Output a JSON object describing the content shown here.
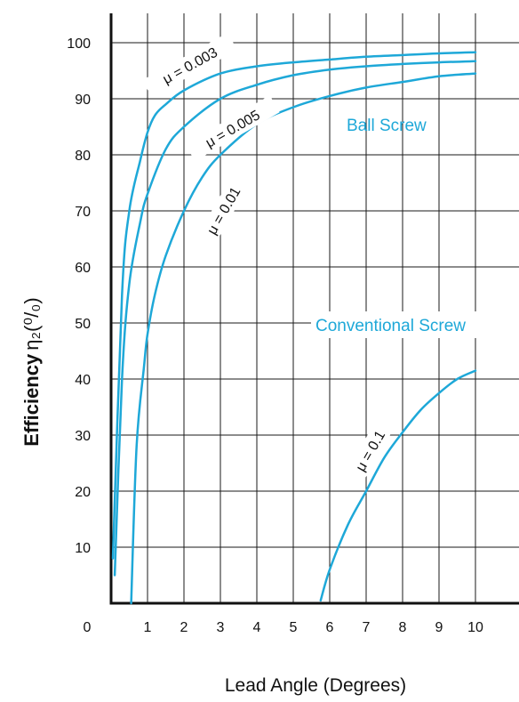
{
  "chart_data": {
    "type": "line",
    "xlabel": "Lead Angle (Degrees)",
    "ylabel": "Efficiency",
    "ylabel_symbol": "η₂(⁰/₀)",
    "x_ticks": [
      "0",
      "1",
      "2",
      "3",
      "4",
      "5",
      "6",
      "7",
      "8",
      "9",
      "10"
    ],
    "y_ticks": [
      "10",
      "20",
      "30",
      "40",
      "50",
      "60",
      "70",
      "80",
      "90",
      "100"
    ],
    "xlim": [
      0,
      10.5
    ],
    "ylim": [
      0,
      105
    ],
    "grid": true,
    "line_color": "#1ea8d8",
    "region_labels": [
      "Ball Screw",
      "Conventional Screw"
    ],
    "series": [
      {
        "name": "μ = 0.003",
        "x": [
          0.05,
          0.3,
          0.5,
          0.8,
          1.0,
          1.2,
          1.5,
          2,
          3,
          4,
          5,
          6,
          7,
          8,
          9,
          10
        ],
        "y": [
          8,
          55,
          70,
          79,
          84,
          87,
          89,
          91.5,
          94.5,
          95.8,
          96.5,
          97,
          97.5,
          97.8,
          98.1,
          98.3
        ]
      },
      {
        "name": "μ = 0.005",
        "x": [
          0.1,
          0.3,
          0.5,
          0.8,
          1.0,
          1.5,
          2,
          3,
          4,
          5,
          6,
          7,
          8,
          9,
          10
        ],
        "y": [
          5,
          40,
          57,
          68,
          73,
          81,
          85,
          90,
          92.5,
          94.2,
          95.2,
          95.8,
          96.2,
          96.5,
          96.7
        ]
      },
      {
        "name": "μ = 0.01",
        "x": [
          0.55,
          0.7,
          0.9,
          1.0,
          1.2,
          1.5,
          2,
          2.5,
          3,
          4,
          5,
          6,
          7,
          8,
          9,
          10
        ],
        "y": [
          0,
          28,
          42,
          48,
          55,
          62,
          70,
          76,
          80,
          85.5,
          88.5,
          90.5,
          92,
          93,
          94,
          94.5
        ]
      },
      {
        "name": "μ = 0.1",
        "x": [
          5.75,
          6.0,
          6.5,
          7,
          7.5,
          8,
          8.5,
          9,
          9.5,
          10
        ],
        "y": [
          0.5,
          6,
          14,
          20,
          26,
          30.5,
          34.5,
          37.5,
          40,
          41.5
        ]
      }
    ]
  }
}
